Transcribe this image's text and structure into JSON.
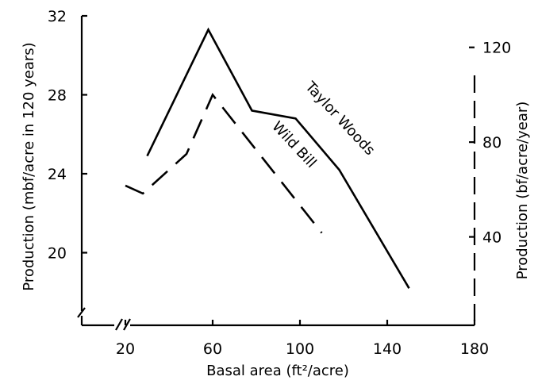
{
  "chart_data": {
    "type": "line",
    "xlabel": "Basal area (ft²/acre)",
    "ylabel_left": "Production (mbf/acre in 120 years)",
    "ylabel_right": "Production (bf/acre/year)",
    "xlim": [
      0,
      180
    ],
    "ylim_left": [
      16,
      32
    ],
    "ylim_right": [
      0,
      133.3
    ],
    "x_ticks": [
      "20",
      "60",
      "100",
      "140",
      "180"
    ],
    "x_tick_values": [
      20,
      60,
      100,
      140,
      180
    ],
    "y_left_ticks": [
      "20",
      "24",
      "28",
      "32"
    ],
    "y_left_tick_values": [
      20,
      24,
      28,
      32
    ],
    "y_right_ticks": [
      "40",
      "80",
      "120"
    ],
    "y_right_tick_values": [
      40,
      80,
      120
    ],
    "series": [
      {
        "name": "Taylor Woods",
        "style": "solid",
        "x": [
          30,
          58,
          78,
          98,
          118,
          150
        ],
        "y": [
          24.9,
          31.3,
          27.2,
          26.8,
          24.2,
          18.2
        ]
      },
      {
        "name": "Wild Bill",
        "style": "dashed",
        "x": [
          20,
          28,
          48,
          60,
          110
        ],
        "y": [
          23.4,
          23.0,
          25.0,
          28.0,
          21.0
        ]
      }
    ],
    "axis_break": true,
    "grid": false,
    "legend": "none"
  }
}
